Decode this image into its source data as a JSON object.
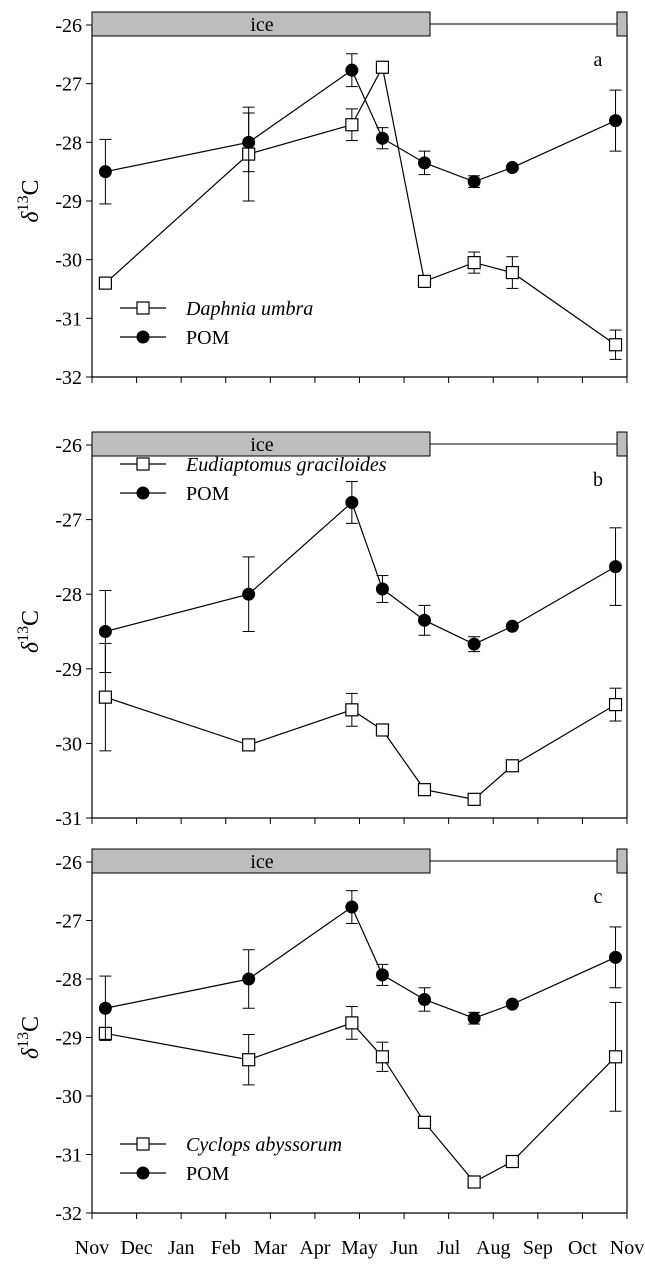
{
  "x_labels": [
    "Nov",
    "Dec",
    "Jan",
    "Feb",
    "Mar",
    "Apr",
    "May",
    "Jun",
    "Jul",
    "Aug",
    "Sep",
    "Oct",
    "Nov"
  ],
  "ylabel": {
    "symbol": "δ",
    "sup": "13",
    "element": "C"
  },
  "chart_data": [
    {
      "type": "line",
      "panel_label": "a",
      "ice_label": "ice",
      "ylim": [
        -32,
        -26
      ],
      "yticks": [
        -32,
        -31,
        -30,
        -29,
        -28,
        -27,
        -26
      ],
      "legend_placement": "bottom-left",
      "series": [
        {
          "name": "Daphnia umbra",
          "italic": true,
          "marker": "open-square",
          "x": [
            0.35,
            4.1,
            6.8,
            7.6,
            8.7,
            10,
            11,
            13.7
          ],
          "y": [
            -30.4,
            -28.2,
            -27.7,
            -26.72,
            -30.37,
            -30.05,
            -30.22,
            -31.45
          ],
          "err": [
            0,
            0.8,
            0.27,
            0,
            0,
            0.18,
            0.27,
            0.25
          ]
        },
        {
          "name": "POM",
          "italic": false,
          "marker": "filled-circle",
          "x": [
            0.35,
            4.1,
            6.8,
            7.6,
            8.7,
            10,
            11,
            13.7
          ],
          "y": [
            -28.5,
            -28.0,
            -26.77,
            -27.93,
            -28.35,
            -28.67,
            -28.43,
            -27.63
          ],
          "err": [
            0.55,
            0.5,
            0.28,
            0.18,
            0.2,
            0.1,
            0,
            0.52
          ]
        }
      ]
    },
    {
      "type": "line",
      "panel_label": "b",
      "ice_label": "ice",
      "ylim": [
        -31,
        -26
      ],
      "yticks": [
        -31,
        -30,
        -29,
        -28,
        -27,
        -26
      ],
      "legend_placement": "top-left",
      "series": [
        {
          "name": "Eudiaptomus graciloides",
          "italic": true,
          "marker": "open-square",
          "x": [
            0.35,
            4.1,
            6.8,
            7.6,
            8.7,
            10,
            11,
            13.7
          ],
          "y": [
            -29.38,
            -30.02,
            -29.55,
            -29.82,
            -30.62,
            -30.75,
            -30.3,
            -29.48
          ],
          "err": [
            0.72,
            0,
            0.22,
            0,
            0,
            0.05,
            0,
            0.22
          ]
        },
        {
          "name": "POM",
          "italic": false,
          "marker": "filled-circle",
          "x": [
            0.35,
            4.1,
            6.8,
            7.6,
            8.7,
            10,
            11,
            13.7
          ],
          "y": [
            -28.5,
            -28.0,
            -26.77,
            -27.93,
            -28.35,
            -28.67,
            -28.43,
            -27.63
          ],
          "err": [
            0.55,
            0.5,
            0.28,
            0.18,
            0.2,
            0.1,
            0,
            0.52
          ]
        }
      ]
    },
    {
      "type": "line",
      "panel_label": "c",
      "ice_label": "ice",
      "ylim": [
        -32,
        -26
      ],
      "yticks": [
        -32,
        -31,
        -30,
        -29,
        -28,
        -27,
        -26
      ],
      "legend_placement": "bottom-left",
      "series": [
        {
          "name": "Cyclops abyssorum",
          "italic": true,
          "marker": "open-square",
          "x": [
            0.35,
            4.1,
            6.8,
            7.6,
            8.7,
            10,
            11,
            13.7
          ],
          "y": [
            -28.93,
            -29.38,
            -28.75,
            -29.33,
            -30.45,
            -31.47,
            -31.12,
            -29.33
          ],
          "err": [
            0,
            0.43,
            0.28,
            0.25,
            0,
            0,
            0,
            0.93
          ]
        },
        {
          "name": "POM",
          "italic": false,
          "marker": "filled-circle",
          "x": [
            0.35,
            4.1,
            6.8,
            7.6,
            8.7,
            10,
            11,
            13.7
          ],
          "y": [
            -28.5,
            -28.0,
            -26.77,
            -27.93,
            -28.35,
            -28.67,
            -28.43,
            -27.63
          ],
          "err": [
            0.55,
            0.5,
            0.28,
            0.18,
            0.2,
            0.1,
            0,
            0.52
          ]
        }
      ]
    }
  ]
}
